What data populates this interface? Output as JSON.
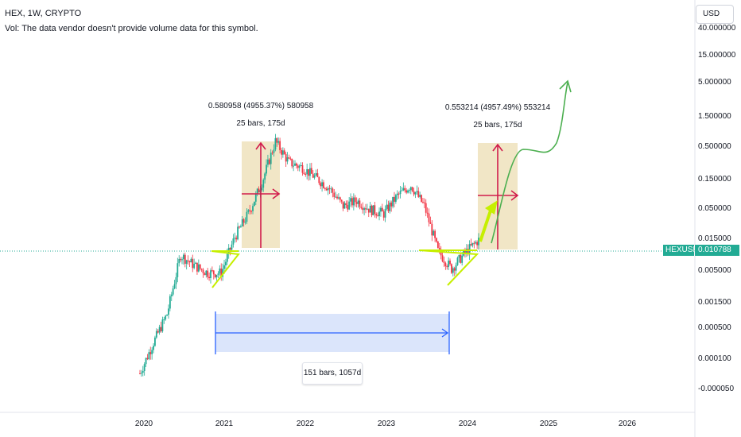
{
  "header": {
    "title": "HEX, 1W, CRYPTO",
    "volume_note": "Vol: The data vendor doesn't provide volume data for this symbol."
  },
  "currency_button": "USD",
  "price_axis": {
    "ticks": [
      "40.000000",
      "15.000000",
      "5.000000",
      "1.500000",
      "0.500000",
      "0.150000",
      "0.050000",
      "0.015000",
      "0.005000",
      "0.001500",
      "0.000500",
      "0.000100",
      "-0.000050"
    ],
    "symbol_tag": "HEXUSD",
    "last_price": "0.010788"
  },
  "time_axis": {
    "ticks": [
      "2020",
      "2021",
      "2022",
      "2023",
      "2024",
      "2025",
      "2026"
    ]
  },
  "annotations": {
    "left_measure_line1": "0.580958 (4955.37%) 580958",
    "left_measure_line2": "25 bars, 175d",
    "right_measure_line1": "0.553214 (4957.49%) 553214",
    "right_measure_line2": "25 bars, 175d",
    "date_range_label": "151 bars, 1057d"
  },
  "colors": {
    "up": "#22ab94",
    "down": "#f23645",
    "price_line": "#22ab94",
    "measure_fill": "#f0e3c0",
    "measure_arrow": "#d11b4b",
    "range_fill": "#dbe5fb",
    "range_line": "#2962ff",
    "triangle": "#c6ef00",
    "projection": "#4caf50"
  },
  "chart_data": {
    "type": "candlestick",
    "symbol": "HEX",
    "interval": "1W",
    "price_scale": "log",
    "last_price": 0.010788,
    "x": [
      "2019-12",
      "2020-02",
      "2020-04",
      "2020-06",
      "2020-08",
      "2020-10",
      "2020-12",
      "2021-02",
      "2021-04",
      "2021-06",
      "2021-08",
      "2021-10",
      "2021-12",
      "2022-02",
      "2022-04",
      "2022-06",
      "2022-08",
      "2022-10",
      "2022-12",
      "2023-02",
      "2023-04",
      "2023-06",
      "2023-08",
      "2023-10",
      "2023-12",
      "2024-02"
    ],
    "close": [
      6e-05,
      0.0002,
      0.0006,
      0.006,
      0.004,
      0.003,
      0.003,
      0.012,
      0.03,
      0.1,
      0.5,
      0.22,
      0.18,
      0.12,
      0.08,
      0.04,
      0.05,
      0.035,
      0.03,
      0.06,
      0.09,
      0.04,
      0.007,
      0.0035,
      0.0065,
      0.0108
    ],
    "measures": [
      {
        "change": 0.580958,
        "percent": "4955.37%",
        "bars": 25,
        "days": "175d"
      },
      {
        "change": 0.553214,
        "percent": "4957.49%",
        "bars": 25,
        "days": "175d"
      }
    ],
    "date_range": {
      "bars": 151,
      "days": "1057d"
    }
  }
}
